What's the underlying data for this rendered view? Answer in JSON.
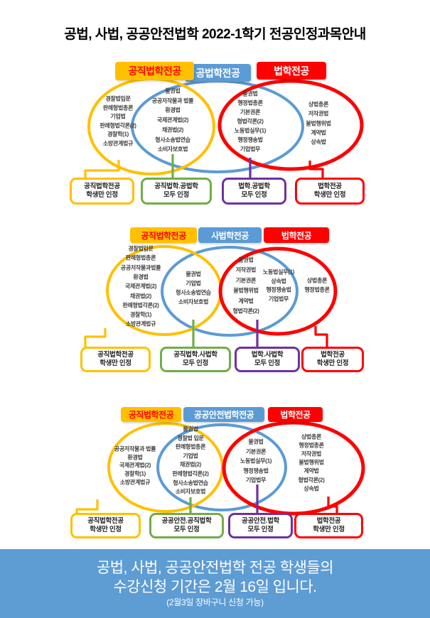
{
  "title": "공법, 사법, 공공안전법학 2022-1학기 전공인정과목안내",
  "colors": {
    "yellow": "#FFC000",
    "blue": "#5B9BD5",
    "red": "#FF0000",
    "green": "#70AD47",
    "purple": "#7030A0",
    "yellow_header_text": "#FF0000",
    "header_text": "#FFFFFF",
    "course_text": "#3F3F3F",
    "banner_bg": "#5E9CD4",
    "banner_text": "#FFFFFF"
  },
  "diagrams": [
    {
      "headers": [
        {
          "label": "공직법학전공",
          "color": "yellow"
        },
        {
          "label": "공법학전공",
          "color": "blue"
        },
        {
          "label": "법학전공",
          "color": "red"
        }
      ],
      "regions": [
        {
          "name": "left-only",
          "items": [
            "경찰법입문",
            "판례형법총론",
            "기업법",
            "판례형법각론(2)",
            "경찰학(1)",
            "소방관계법규"
          ]
        },
        {
          "name": "left-mid",
          "items": [
            "물권법",
            "공공저작물과 법률",
            "환경법",
            "국제관계법(2)",
            "채권법(2)",
            "형사소송법연습",
            "소비자보호법"
          ]
        },
        {
          "name": "mid-right",
          "items": [
            "물권법",
            "행정법총론",
            "기본권론",
            "형법각론(2)",
            "노동법실무(1)",
            "행정쟁송법",
            "기업법무"
          ]
        },
        {
          "name": "right-only",
          "items": [
            "상법총론",
            "저작권법",
            "불법행위법",
            "계약법",
            "상속법"
          ]
        }
      ],
      "footers": [
        {
          "line1": "공직법학전공",
          "line2": "학생만 인정",
          "color": "yellow"
        },
        {
          "line1": "공직법학.공법학",
          "line2": "모두 인정",
          "color": "green"
        },
        {
          "line1": "법학.공법학",
          "line2": "모두 인정",
          "color": "purple"
        },
        {
          "line1": "법학전공",
          "line2": "학생만 인정",
          "color": "red"
        }
      ]
    },
    {
      "headers": [
        {
          "label": "공직법학전공",
          "color": "yellow"
        },
        {
          "label": "사법학전공",
          "color": "blue"
        },
        {
          "label": "법학전공",
          "color": "red"
        }
      ],
      "regions": [
        {
          "name": "left-only",
          "items": [
            "경찰법입문",
            "판례형법총론",
            "공공저작물과법률",
            "환경법",
            "국제관계법(2)",
            "채권법(2)",
            "판례형법각론(2)",
            "경찰학(1)",
            "소방관계법규"
          ]
        },
        {
          "name": "left-mid",
          "items": [
            "물권법",
            "기업법",
            "형사소송법연습",
            "소비자보호법"
          ]
        },
        {
          "name": "mid-right",
          "items": [
            "물권법",
            "저작권법",
            "기본권론",
            "불법행위법",
            "계약법",
            "형법각론(2)"
          ]
        },
        {
          "name": "mid-right-2",
          "items": [
            "노동법실무(1)",
            "상속법",
            "행정쟁송법",
            "기업법무"
          ]
        },
        {
          "name": "right-only",
          "items": [
            "상법총론",
            "행정법총론"
          ]
        }
      ],
      "footers": [
        {
          "line1": "공직법학전공",
          "line2": "학생만 인정",
          "color": "yellow"
        },
        {
          "line1": "공직법학.사법학",
          "line2": "모두 인정",
          "color": "green"
        },
        {
          "line1": "법학.사법학",
          "line2": "모두 인정",
          "color": "purple"
        },
        {
          "line1": "법학전공",
          "line2": "학생만 인정",
          "color": "red"
        }
      ]
    },
    {
      "headers": [
        {
          "label": "공직법학전공",
          "color": "yellow"
        },
        {
          "label": "공공안전법학전공",
          "color": "blue"
        },
        {
          "label": "법학전공",
          "color": "red"
        }
      ],
      "regions": [
        {
          "name": "left-only",
          "items": [
            "공공저작물과 법률",
            "환경법",
            "국제관계법(2)",
            "경찰학(1)",
            "소방관계법규"
          ]
        },
        {
          "name": "left-mid",
          "items": [
            "물권법",
            "경찰법 입문",
            "판례형법총론",
            "기업법",
            "채권법(2)",
            "판례형법각론(2)",
            "형사소송법연습",
            "소비자보호법"
          ]
        },
        {
          "name": "mid-right",
          "items": [
            "물권법",
            "기본권론",
            "노동법실무(1)",
            "행정쟁송법",
            "기업법무"
          ]
        },
        {
          "name": "right-only",
          "items": [
            "상법총론",
            "행정법총론",
            "저작권법",
            "불법행위법",
            "계약법",
            "형법각론(2)",
            "상속법"
          ]
        }
      ],
      "footers": [
        {
          "line1": "공직법학전공",
          "line2": "학생만 인정",
          "color": "yellow"
        },
        {
          "line1": "공공안전.공직법학",
          "line2": "모두 인정",
          "color": "green"
        },
        {
          "line1": "공공안전.법학",
          "line2": "모두 인정",
          "color": "purple"
        },
        {
          "line1": "법학전공",
          "line2": "학생만 인정",
          "color": "red"
        }
      ]
    }
  ],
  "banner": {
    "line1": "공법, 사법, 공공안전법학 전공 학생들의",
    "line2": "수강신청 기간은 2월 16일 입니다.",
    "line3": "(2월3일 장바구니 신청 가능)"
  }
}
